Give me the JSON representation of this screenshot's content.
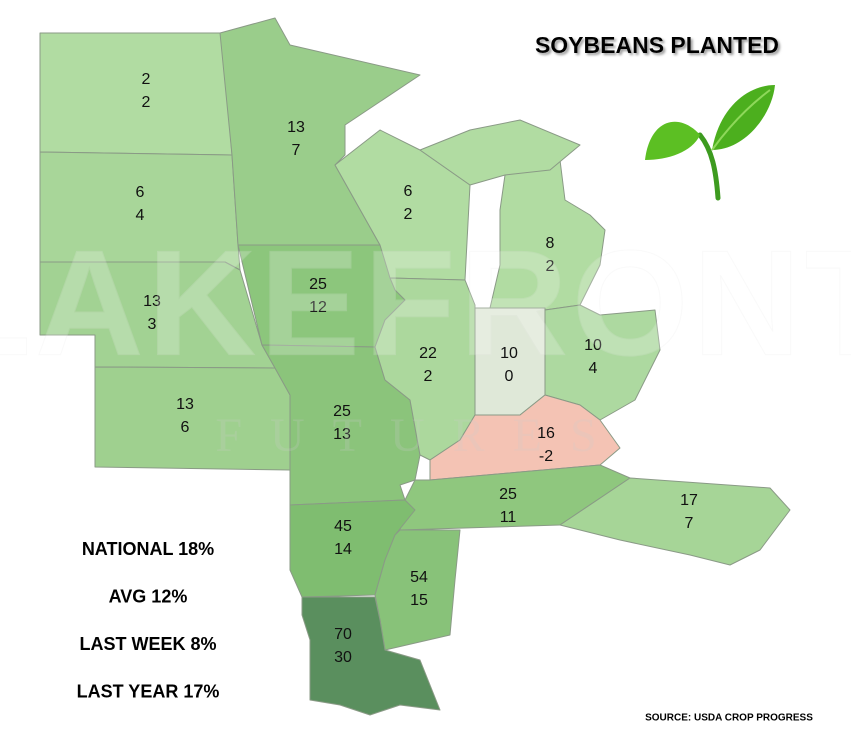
{
  "title": "SOYBEANS PLANTED",
  "watermark": {
    "brand": "LAKEFRONT",
    "sub": "FUTURES"
  },
  "states": [
    {
      "planted": 2,
      "change": 2,
      "color": "#b1dca2"
    },
    {
      "planted": 6,
      "change": 4,
      "color": "#a8d699"
    },
    {
      "planted": 13,
      "change": 3,
      "color": "#a2d293"
    },
    {
      "planted": 13,
      "change": 6,
      "color": "#9fd08f"
    },
    {
      "planted": 13,
      "change": 7,
      "color": "#9acd8b"
    },
    {
      "planted": 25,
      "change": 12,
      "color": "#8cc67c"
    },
    {
      "planted": 25,
      "change": 13,
      "color": "#8bc47b"
    },
    {
      "planted": 6,
      "change": 2,
      "color": "#b1dca2"
    },
    {
      "planted": 22,
      "change": 2,
      "color": "#acd89d"
    },
    {
      "planted": 8,
      "change": 2,
      "color": "#b1dca2"
    },
    {
      "planted": 10,
      "change": 0,
      "color": "#dfe8d8"
    },
    {
      "planted": 10,
      "change": 4,
      "color": "#add9a0"
    },
    {
      "planted": 16,
      "change": -2,
      "color": "#f4c3b4"
    },
    {
      "planted": 25,
      "change": 11,
      "color": "#8fc77e"
    },
    {
      "planted": 17,
      "change": 7,
      "color": "#a6d597"
    },
    {
      "planted": 45,
      "change": 14,
      "color": "#7fbd70"
    },
    {
      "planted": 54,
      "change": 15,
      "color": "#88c279"
    },
    {
      "planted": 70,
      "change": 30,
      "color": "#5a8f5e"
    }
  ],
  "summary": [
    "NATIONAL 18%",
    "AVG 12%",
    "LAST WEEK 8%",
    "LAST YEAR 17%"
  ],
  "source": "SOURCE: USDA CROP PROGRESS"
}
